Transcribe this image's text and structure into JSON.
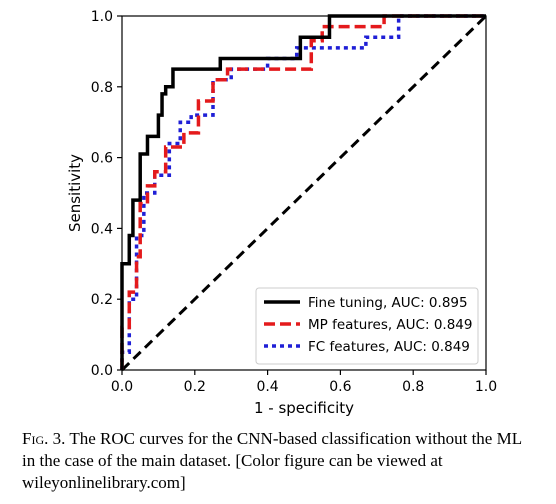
{
  "chart_data": {
    "type": "line",
    "xlabel": "1 - specificity",
    "ylabel": "Sensitivity",
    "xlim": [
      0,
      1
    ],
    "ylim": [
      0,
      1
    ],
    "xticks": [
      "0.0",
      "0.2",
      "0.4",
      "0.6",
      "0.8",
      "1.0"
    ],
    "yticks": [
      "0.0",
      "0.2",
      "0.4",
      "0.6",
      "0.8",
      "1.0"
    ],
    "grid": false,
    "legend_position": "bottom-right",
    "series": [
      {
        "name": "Fine tuning, AUC: 0.895",
        "color": "#000000",
        "style": "solid",
        "x": [
          0,
          0,
          0.02,
          0.02,
          0.03,
          0.03,
          0.05,
          0.05,
          0.07,
          0.07,
          0.1,
          0.1,
          0.11,
          0.11,
          0.12,
          0.12,
          0.14,
          0.14,
          0.27,
          0.27,
          0.49,
          0.49,
          0.57,
          0.57,
          1.0
        ],
        "y": [
          0,
          0.3,
          0.3,
          0.38,
          0.38,
          0.48,
          0.48,
          0.61,
          0.61,
          0.66,
          0.66,
          0.72,
          0.72,
          0.78,
          0.78,
          0.8,
          0.8,
          0.85,
          0.85,
          0.88,
          0.88,
          0.94,
          0.94,
          1.0,
          1.0
        ]
      },
      {
        "name": "MP features, AUC: 0.849",
        "color": "#e41a1c",
        "style": "dashed",
        "x": [
          0,
          0,
          0.02,
          0.02,
          0.04,
          0.04,
          0.05,
          0.05,
          0.07,
          0.07,
          0.09,
          0.09,
          0.12,
          0.12,
          0.17,
          0.17,
          0.21,
          0.21,
          0.25,
          0.25,
          0.29,
          0.29,
          0.52,
          0.52,
          0.55,
          0.55,
          0.72,
          0.72,
          1.0
        ],
        "y": [
          0,
          0.12,
          0.12,
          0.22,
          0.22,
          0.32,
          0.32,
          0.47,
          0.47,
          0.52,
          0.52,
          0.56,
          0.56,
          0.63,
          0.63,
          0.67,
          0.67,
          0.76,
          0.76,
          0.82,
          0.82,
          0.85,
          0.85,
          0.93,
          0.93,
          0.97,
          0.97,
          1.0,
          1.0
        ]
      },
      {
        "name": "FC features, AUC: 0.849",
        "color": "#1f1fd6",
        "style": "dotted",
        "x": [
          0,
          0,
          0.02,
          0.02,
          0.04,
          0.04,
          0.06,
          0.06,
          0.09,
          0.09,
          0.13,
          0.13,
          0.16,
          0.16,
          0.19,
          0.19,
          0.25,
          0.25,
          0.3,
          0.3,
          0.4,
          0.4,
          0.48,
          0.48,
          0.67,
          0.67,
          0.76,
          0.76,
          1.0
        ],
        "y": [
          0,
          0.05,
          0.05,
          0.2,
          0.2,
          0.38,
          0.38,
          0.5,
          0.5,
          0.55,
          0.55,
          0.64,
          0.64,
          0.7,
          0.7,
          0.72,
          0.72,
          0.82,
          0.82,
          0.85,
          0.85,
          0.88,
          0.88,
          0.91,
          0.91,
          0.94,
          0.94,
          1.0,
          1.0
        ]
      },
      {
        "name": "",
        "color": "#000000",
        "style": "dashed-diagonal",
        "x": [
          0,
          1
        ],
        "y": [
          0,
          1
        ]
      }
    ]
  },
  "caption": {
    "label": "Fig. 3.",
    "text": "The ROC curves for the CNN-based classification without the ML in the case of the main dataset. [Color figure can be viewed at wileyonlinelibrary.com]"
  }
}
